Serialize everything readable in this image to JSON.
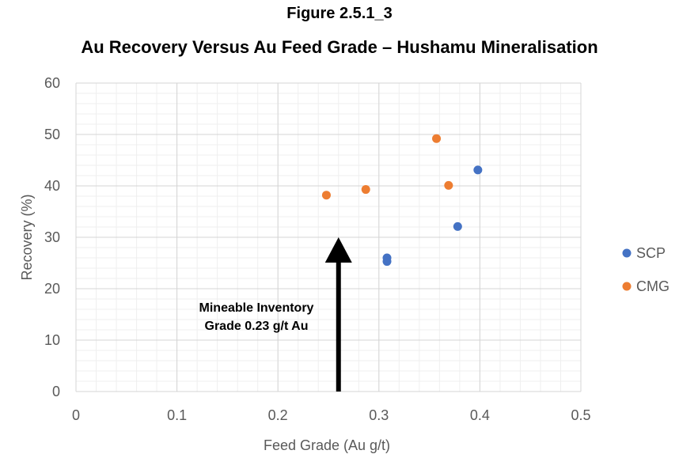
{
  "figure": {
    "number": "Figure 2.5.1_3",
    "title": "Au Recovery Versus Au Feed Grade – Hushamu Mineralisation"
  },
  "chart_data": {
    "type": "scatter",
    "xlabel": "Feed Grade (Au g/t)",
    "ylabel": "Recovery (%)",
    "xlim": [
      0,
      0.5
    ],
    "ylim": [
      0,
      60
    ],
    "x_ticks": [
      0,
      0.1,
      0.2,
      0.3,
      0.4,
      0.5
    ],
    "x_tick_labels": [
      "0",
      "0.1",
      "0.2",
      "0.3",
      "0.4",
      "0.5"
    ],
    "y_ticks": [
      0,
      10,
      20,
      30,
      40,
      50,
      60
    ],
    "y_tick_labels": [
      "0",
      "10",
      "20",
      "30",
      "40",
      "50",
      "60"
    ],
    "grid": true,
    "minor_grid": true,
    "legend_position": "right",
    "series": [
      {
        "name": "SCP",
        "color": "#4472C4",
        "points": [
          {
            "x": 0.308,
            "y": 26.0
          },
          {
            "x": 0.308,
            "y": 25.3
          },
          {
            "x": 0.378,
            "y": 32.1
          },
          {
            "x": 0.398,
            "y": 43.1
          }
        ]
      },
      {
        "name": "CMG",
        "color": "#ED7D31",
        "points": [
          {
            "x": 0.248,
            "y": 38.2
          },
          {
            "x": 0.287,
            "y": 39.3
          },
          {
            "x": 0.357,
            "y": 49.2
          },
          {
            "x": 0.369,
            "y": 40.1
          }
        ]
      }
    ],
    "annotation": {
      "lines": [
        "Mineable Inventory",
        "Grade 0.23 g/t Au"
      ],
      "arrow_x": 0.26,
      "arrow_y_from": 0,
      "arrow_y_to": 30,
      "color": "#000000"
    }
  }
}
